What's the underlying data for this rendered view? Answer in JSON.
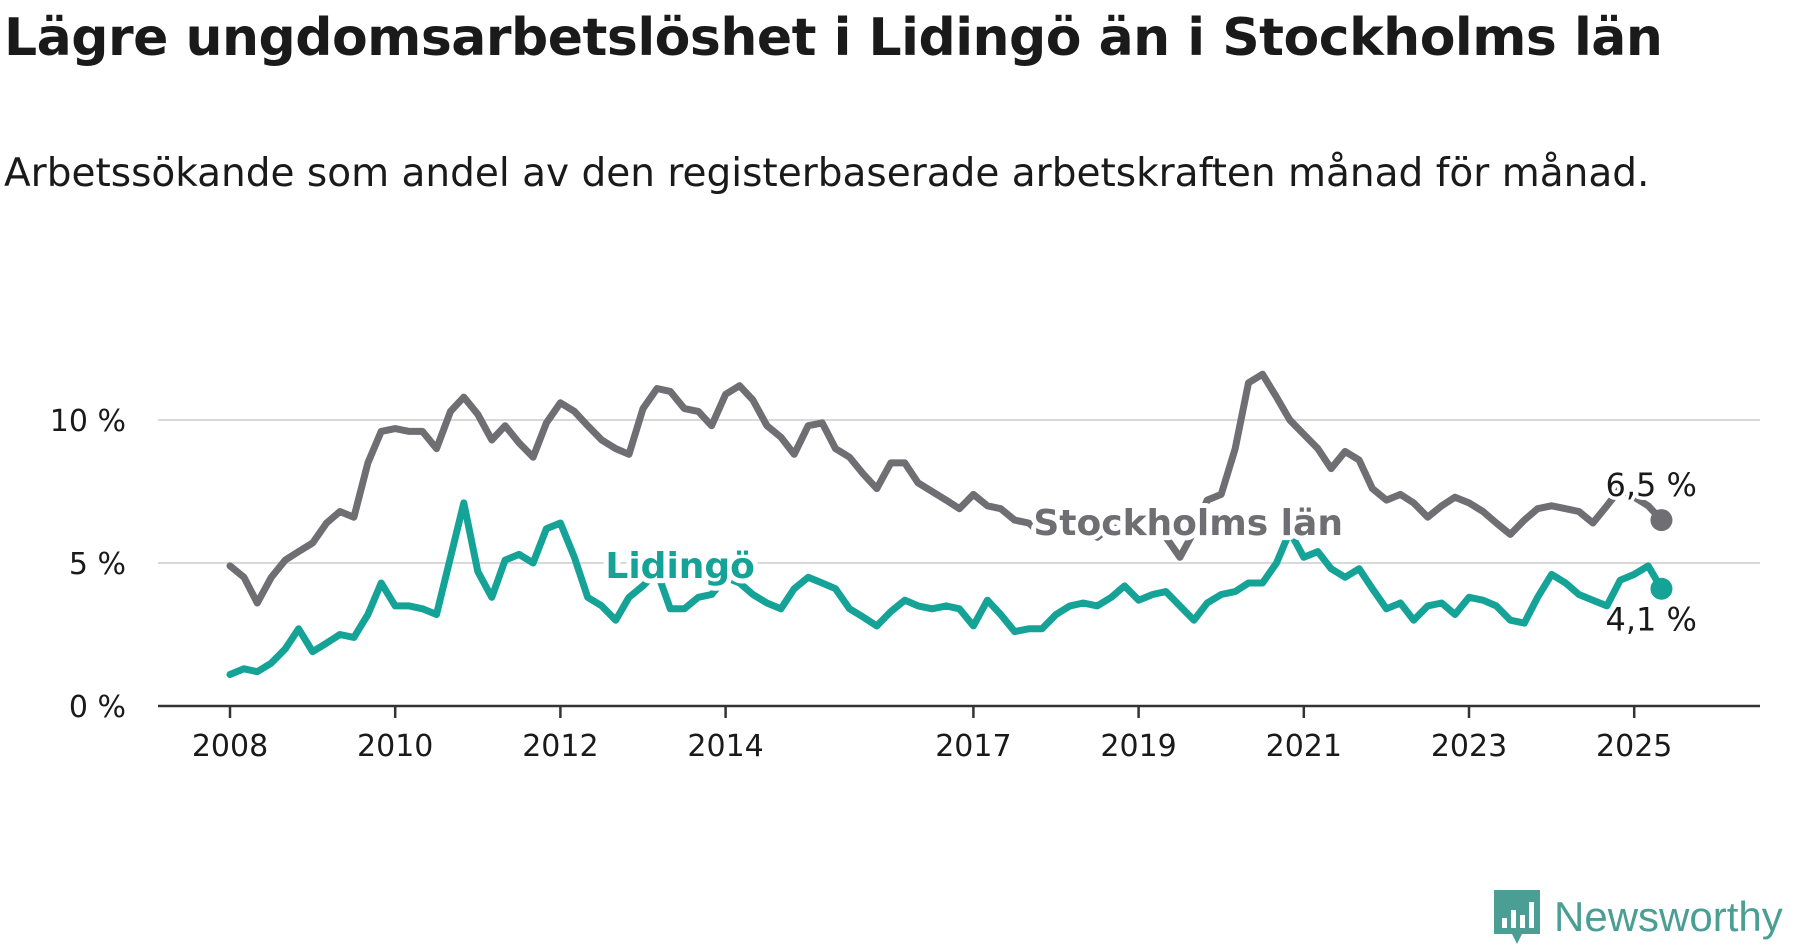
{
  "title": "Lägre ungdomsarbetslöshet i Lidingö än i Stockholms län",
  "subtitle": "Arbetssökande som andel av den registerbaserade arbetskraften månad för månad.",
  "brand": {
    "name": "Newsworthy",
    "logo_icon": "newsworthy-chart-icon"
  },
  "colors": {
    "stockholm": "#6e6e73",
    "lidingo": "#14a396",
    "grid": "#d9d9d9",
    "axis": "#333333",
    "text": "#1a1a1a"
  },
  "chart_data": {
    "type": "line",
    "title": "Lägre ungdomsarbetslöshet i Lidingö än i Stockholms län",
    "subtitle": "Arbetssökande som andel av den registerbaserade arbetskraften månad för månad.",
    "xlabel": "",
    "ylabel": "",
    "xlim": [
      2008.0,
      2025.33
    ],
    "ylim": [
      0,
      12
    ],
    "y_ticks": [
      0,
      5,
      10
    ],
    "y_tick_labels": [
      "0 %",
      "5 %",
      "10 %"
    ],
    "x_ticks": [
      2008,
      2010,
      2012,
      2014,
      2017,
      2019,
      2021,
      2023,
      2025
    ],
    "x_tick_labels": [
      "2008",
      "2010",
      "2012",
      "2014",
      "2017",
      "2019",
      "2021",
      "2023",
      "2025"
    ],
    "grid": true,
    "series": [
      {
        "name": "Stockholms län",
        "color": "#6e6e73",
        "end_label": "6,5 %",
        "points": [
          [
            2008.0,
            4.9
          ],
          [
            2008.17,
            4.5
          ],
          [
            2008.33,
            3.6
          ],
          [
            2008.5,
            4.5
          ],
          [
            2008.67,
            5.1
          ],
          [
            2008.83,
            5.4
          ],
          [
            2009.0,
            5.7
          ],
          [
            2009.17,
            6.4
          ],
          [
            2009.33,
            6.8
          ],
          [
            2009.5,
            6.6
          ],
          [
            2009.67,
            8.5
          ],
          [
            2009.83,
            9.6
          ],
          [
            2010.0,
            9.7
          ],
          [
            2010.17,
            9.6
          ],
          [
            2010.33,
            9.6
          ],
          [
            2010.5,
            9.0
          ],
          [
            2010.67,
            10.3
          ],
          [
            2010.83,
            10.8
          ],
          [
            2011.0,
            10.2
          ],
          [
            2011.17,
            9.3
          ],
          [
            2011.33,
            9.8
          ],
          [
            2011.5,
            9.2
          ],
          [
            2011.67,
            8.7
          ],
          [
            2011.83,
            9.9
          ],
          [
            2012.0,
            10.6
          ],
          [
            2012.17,
            10.3
          ],
          [
            2012.33,
            9.8
          ],
          [
            2012.5,
            9.3
          ],
          [
            2012.67,
            9.0
          ],
          [
            2012.83,
            8.8
          ],
          [
            2013.0,
            10.4
          ],
          [
            2013.17,
            11.1
          ],
          [
            2013.33,
            11.0
          ],
          [
            2013.5,
            10.4
          ],
          [
            2013.67,
            10.3
          ],
          [
            2013.83,
            9.8
          ],
          [
            2014.0,
            10.9
          ],
          [
            2014.17,
            11.2
          ],
          [
            2014.33,
            10.7
          ],
          [
            2014.5,
            9.8
          ],
          [
            2014.67,
            9.4
          ],
          [
            2014.83,
            8.8
          ],
          [
            2015.0,
            9.8
          ],
          [
            2015.17,
            9.9
          ],
          [
            2015.33,
            9.0
          ],
          [
            2015.5,
            8.7
          ],
          [
            2015.67,
            8.1
          ],
          [
            2015.83,
            7.6
          ],
          [
            2016.0,
            8.5
          ],
          [
            2016.17,
            8.5
          ],
          [
            2016.33,
            7.8
          ],
          [
            2016.5,
            7.5
          ],
          [
            2016.67,
            7.2
          ],
          [
            2016.83,
            6.9
          ],
          [
            2017.0,
            7.4
          ],
          [
            2017.17,
            7.0
          ],
          [
            2017.33,
            6.9
          ],
          [
            2017.5,
            6.5
          ],
          [
            2017.67,
            6.4
          ],
          [
            2017.83,
            6.0
          ],
          [
            2018.0,
            6.8
          ],
          [
            2018.17,
            6.6
          ],
          [
            2018.33,
            6.1
          ],
          [
            2018.5,
            5.9
          ],
          [
            2018.67,
            6.3
          ],
          [
            2018.83,
            6.1
          ],
          [
            2019.0,
            6.6
          ],
          [
            2019.17,
            6.4
          ],
          [
            2019.33,
            5.9
          ],
          [
            2019.5,
            5.2
          ],
          [
            2019.67,
            6.1
          ],
          [
            2019.83,
            7.2
          ],
          [
            2020.0,
            7.4
          ],
          [
            2020.17,
            9.0
          ],
          [
            2020.33,
            11.3
          ],
          [
            2020.5,
            11.6
          ],
          [
            2020.67,
            10.8
          ],
          [
            2020.83,
            10.0
          ],
          [
            2021.0,
            9.5
          ],
          [
            2021.17,
            9.0
          ],
          [
            2021.33,
            8.3
          ],
          [
            2021.5,
            8.9
          ],
          [
            2021.67,
            8.6
          ],
          [
            2021.83,
            7.6
          ],
          [
            2022.0,
            7.2
          ],
          [
            2022.17,
            7.4
          ],
          [
            2022.33,
            7.1
          ],
          [
            2022.5,
            6.6
          ],
          [
            2022.67,
            7.0
          ],
          [
            2022.83,
            7.3
          ],
          [
            2023.0,
            7.1
          ],
          [
            2023.17,
            6.8
          ],
          [
            2023.33,
            6.4
          ],
          [
            2023.5,
            6.0
          ],
          [
            2023.67,
            6.5
          ],
          [
            2023.83,
            6.9
          ],
          [
            2024.0,
            7.0
          ],
          [
            2024.17,
            6.9
          ],
          [
            2024.33,
            6.8
          ],
          [
            2024.5,
            6.4
          ],
          [
            2024.67,
            7.0
          ],
          [
            2024.83,
            7.6
          ],
          [
            2025.0,
            7.3
          ],
          [
            2025.17,
            7.0
          ],
          [
            2025.33,
            6.5
          ]
        ]
      },
      {
        "name": "Lidingö",
        "color": "#14a396",
        "end_label": "4,1 %",
        "points": [
          [
            2008.0,
            1.1
          ],
          [
            2008.17,
            1.3
          ],
          [
            2008.33,
            1.2
          ],
          [
            2008.5,
            1.5
          ],
          [
            2008.67,
            2.0
          ],
          [
            2008.83,
            2.7
          ],
          [
            2009.0,
            1.9
          ],
          [
            2009.17,
            2.2
          ],
          [
            2009.33,
            2.5
          ],
          [
            2009.5,
            2.4
          ],
          [
            2009.67,
            3.2
          ],
          [
            2009.83,
            4.3
          ],
          [
            2010.0,
            3.5
          ],
          [
            2010.17,
            3.5
          ],
          [
            2010.33,
            3.4
          ],
          [
            2010.5,
            3.2
          ],
          [
            2010.67,
            5.2
          ],
          [
            2010.83,
            7.1
          ],
          [
            2011.0,
            4.7
          ],
          [
            2011.17,
            3.8
          ],
          [
            2011.33,
            5.1
          ],
          [
            2011.5,
            5.3
          ],
          [
            2011.67,
            5.0
          ],
          [
            2011.83,
            6.2
          ],
          [
            2012.0,
            6.4
          ],
          [
            2012.17,
            5.2
          ],
          [
            2012.33,
            3.8
          ],
          [
            2012.5,
            3.5
          ],
          [
            2012.67,
            3.0
          ],
          [
            2012.83,
            3.8
          ],
          [
            2013.0,
            4.2
          ],
          [
            2013.17,
            4.7
          ],
          [
            2013.33,
            3.4
          ],
          [
            2013.5,
            3.4
          ],
          [
            2013.67,
            3.8
          ],
          [
            2013.83,
            3.9
          ],
          [
            2014.0,
            4.5
          ],
          [
            2014.17,
            4.3
          ],
          [
            2014.33,
            3.9
          ],
          [
            2014.5,
            3.6
          ],
          [
            2014.67,
            3.4
          ],
          [
            2014.83,
            4.1
          ],
          [
            2015.0,
            4.5
          ],
          [
            2015.17,
            4.3
          ],
          [
            2015.33,
            4.1
          ],
          [
            2015.5,
            3.4
          ],
          [
            2015.67,
            3.1
          ],
          [
            2015.83,
            2.8
          ],
          [
            2016.0,
            3.3
          ],
          [
            2016.17,
            3.7
          ],
          [
            2016.33,
            3.5
          ],
          [
            2016.5,
            3.4
          ],
          [
            2016.67,
            3.5
          ],
          [
            2016.83,
            3.4
          ],
          [
            2017.0,
            2.8
          ],
          [
            2017.17,
            3.7
          ],
          [
            2017.33,
            3.2
          ],
          [
            2017.5,
            2.6
          ],
          [
            2017.67,
            2.7
          ],
          [
            2017.83,
            2.7
          ],
          [
            2018.0,
            3.2
          ],
          [
            2018.17,
            3.5
          ],
          [
            2018.33,
            3.6
          ],
          [
            2018.5,
            3.5
          ],
          [
            2018.67,
            3.8
          ],
          [
            2018.83,
            4.2
          ],
          [
            2019.0,
            3.7
          ],
          [
            2019.17,
            3.9
          ],
          [
            2019.33,
            4.0
          ],
          [
            2019.5,
            3.5
          ],
          [
            2019.67,
            3.0
          ],
          [
            2019.83,
            3.6
          ],
          [
            2020.0,
            3.9
          ],
          [
            2020.17,
            4.0
          ],
          [
            2020.33,
            4.3
          ],
          [
            2020.5,
            4.3
          ],
          [
            2020.67,
            5.0
          ],
          [
            2020.83,
            6.1
          ],
          [
            2021.0,
            5.2
          ],
          [
            2021.17,
            5.4
          ],
          [
            2021.33,
            4.8
          ],
          [
            2021.5,
            4.5
          ],
          [
            2021.67,
            4.8
          ],
          [
            2021.83,
            4.1
          ],
          [
            2022.0,
            3.4
          ],
          [
            2022.17,
            3.6
          ],
          [
            2022.33,
            3.0
          ],
          [
            2022.5,
            3.5
          ],
          [
            2022.67,
            3.6
          ],
          [
            2022.83,
            3.2
          ],
          [
            2023.0,
            3.8
          ],
          [
            2023.17,
            3.7
          ],
          [
            2023.33,
            3.5
          ],
          [
            2023.5,
            3.0
          ],
          [
            2023.67,
            2.9
          ],
          [
            2023.83,
            3.8
          ],
          [
            2024.0,
            4.6
          ],
          [
            2024.17,
            4.3
          ],
          [
            2024.33,
            3.9
          ],
          [
            2024.5,
            3.7
          ],
          [
            2024.67,
            3.5
          ],
          [
            2024.83,
            4.4
          ],
          [
            2025.0,
            4.6
          ],
          [
            2025.17,
            4.9
          ],
          [
            2025.33,
            4.1
          ]
        ]
      }
    ],
    "annotations": [
      {
        "text": "Stockholms län",
        "series": "Stockholms län",
        "anchor_x": 2019.6,
        "anchor_y": 6.4
      },
      {
        "text": "Lidingö",
        "series": "Lidingö",
        "anchor_x": 2013.45,
        "anchor_y": 4.9
      }
    ]
  }
}
